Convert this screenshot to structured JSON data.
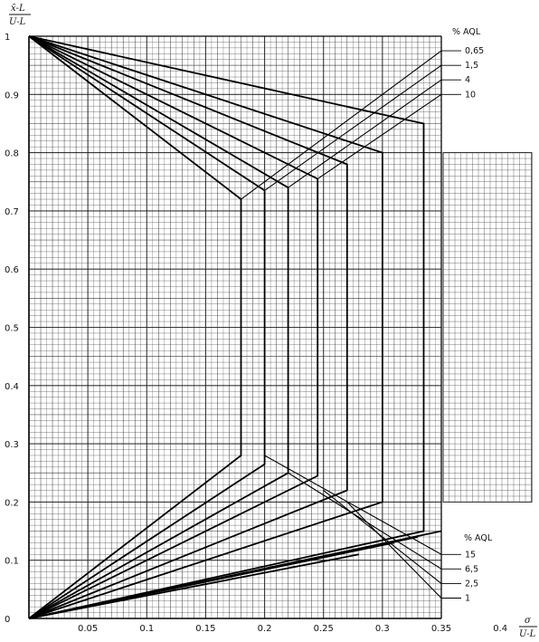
{
  "chart_data": {
    "type": "line",
    "title": "",
    "ylabel": "x̄-L / U-L",
    "xlabel": "σ / U-L",
    "ylabel_num": "x̄-L",
    "ylabel_den": "U-L",
    "xlabel_num": "σ",
    "xlabel_den": "U-L",
    "xlim": [
      0,
      0.42
    ],
    "ylim": [
      0,
      1
    ],
    "x_ticks": [
      "0.05",
      "0.1",
      "0.15",
      "0.2",
      "0.25",
      "0.3",
      "0.35",
      "0.4"
    ],
    "y_ticks": [
      "0",
      "0.1",
      "0.2",
      "0.3",
      "0.4",
      "0.5",
      "0.6",
      "0.7",
      "0.8",
      "0.9",
      "1"
    ],
    "grid": true,
    "grid_minor": true,
    "upper_legend_title": "% AQL",
    "lower_legend_title": "% AQL",
    "series": [
      {
        "name": "0,65",
        "group": "double",
        "points": [
          [
            0,
            1.0
          ],
          [
            0.18,
            0.72
          ],
          [
            0.18,
            0.28
          ],
          [
            0,
            0
          ]
        ],
        "label_line": [
          [
            0.18,
            0.72
          ],
          [
            0.35,
            0.975
          ]
        ]
      },
      {
        "name": "1,5",
        "group": "double",
        "points": [
          [
            0,
            1.0
          ],
          [
            0.2,
            0.735
          ],
          [
            0.2,
            0.265
          ],
          [
            0,
            0
          ]
        ],
        "label_line": [
          [
            0.2,
            0.735
          ],
          [
            0.35,
            0.95
          ]
        ]
      },
      {
        "name": "4",
        "group": "double",
        "points": [
          [
            0,
            1.0
          ],
          [
            0.22,
            0.74
          ],
          [
            0.22,
            0.25
          ],
          [
            0,
            0
          ]
        ],
        "label_line": [
          [
            0.22,
            0.74
          ],
          [
            0.35,
            0.925
          ]
        ]
      },
      {
        "name": "10",
        "group": "double",
        "points": [
          [
            0,
            1.0
          ],
          [
            0.245,
            0.755
          ],
          [
            0.245,
            0.245
          ],
          [
            0,
            0
          ]
        ],
        "label_line": [
          [
            0.245,
            0.755
          ],
          [
            0.35,
            0.9
          ]
        ]
      },
      {
        "name": "",
        "group": "double",
        "points": [
          [
            0,
            1.0
          ],
          [
            0.27,
            0.78
          ],
          [
            0.27,
            0.22
          ],
          [
            0,
            0
          ]
        ]
      },
      {
        "name": "",
        "group": "double",
        "points": [
          [
            0,
            1.0
          ],
          [
            0.3,
            0.8
          ],
          [
            0.3,
            0.2
          ],
          [
            0,
            0
          ]
        ]
      },
      {
        "name": "",
        "group": "double",
        "points": [
          [
            0,
            1.0
          ],
          [
            0.335,
            0.85
          ],
          [
            0.335,
            0.15
          ],
          [
            0,
            0
          ]
        ]
      },
      {
        "name": "15",
        "group": "lower",
        "points": [
          [
            0,
            0
          ],
          [
            0.35,
            0.15
          ]
        ],
        "label_line": [
          [
            0.2,
            0.28
          ],
          [
            0.35,
            0.11
          ]
        ]
      },
      {
        "name": "6,5",
        "group": "lower",
        "points": [
          [
            0,
            0
          ],
          [
            0.33,
            0.14
          ]
        ],
        "label_line": [
          [
            0.22,
            0.25
          ],
          [
            0.35,
            0.085
          ]
        ]
      },
      {
        "name": "2,5",
        "group": "lower",
        "points": [
          [
            0,
            0
          ],
          [
            0.31,
            0.13
          ]
        ],
        "label_line": [
          [
            0.25,
            0.22
          ],
          [
            0.35,
            0.06
          ]
        ]
      },
      {
        "name": "1",
        "group": "lower",
        "points": [
          [
            0,
            0
          ],
          [
            0.28,
            0.11
          ]
        ],
        "label_line": [
          [
            0.27,
            0.2
          ],
          [
            0.35,
            0.035
          ]
        ]
      }
    ]
  }
}
